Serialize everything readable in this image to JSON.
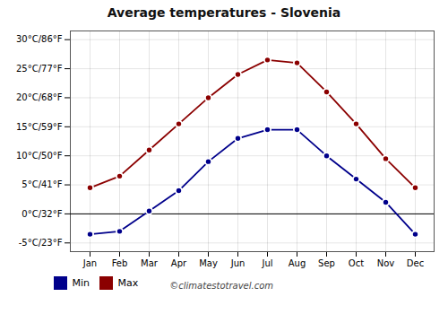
{
  "chart_data": {
    "type": "line",
    "title": "Average temperatures - Slovenia",
    "categories": [
      "Jan",
      "Feb",
      "Mar",
      "Apr",
      "May",
      "Jun",
      "Jul",
      "Aug",
      "Sep",
      "Oct",
      "Nov",
      "Dec"
    ],
    "series": [
      {
        "name": "Min",
        "color": "#00008B",
        "values": [
          -3.5,
          -3.0,
          0.5,
          4.0,
          9.0,
          13.0,
          14.5,
          14.5,
          10.0,
          6.0,
          2.0,
          -3.5
        ]
      },
      {
        "name": "Max",
        "color": "#8B0000",
        "values": [
          4.5,
          6.5,
          11.0,
          15.5,
          20.0,
          24.0,
          26.5,
          26.0,
          21.0,
          15.5,
          9.5,
          4.5
        ]
      }
    ],
    "ylim": [
      -6.5,
      31.5
    ],
    "yticks": [
      {
        "value": -5,
        "label": "-5°C/23°F"
      },
      {
        "value": 0,
        "label": "0°C/32°F"
      },
      {
        "value": 5,
        "label": "5°C/41°F"
      },
      {
        "value": 10,
        "label": "10°C/50°F"
      },
      {
        "value": 15,
        "label": "15°C/59°F"
      },
      {
        "value": 20,
        "label": "20°C/68°F"
      },
      {
        "value": 25,
        "label": "25°C/77°F"
      },
      {
        "value": 30,
        "label": "30°C/86°F"
      }
    ],
    "grid": true,
    "marker": "circle",
    "legend": "lower left",
    "annotations": [
      "©climatestotravel.com"
    ]
  }
}
